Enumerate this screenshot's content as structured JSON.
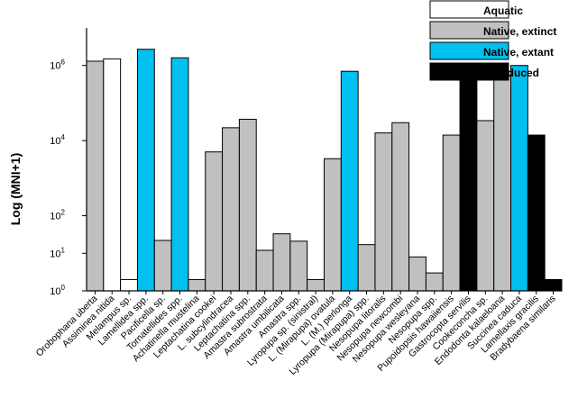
{
  "chart_data": {
    "type": "bar",
    "title": "",
    "xlabel": "",
    "ylabel": "Log (MNI+1)",
    "y_scale": "log",
    "ylim": [
      1,
      10000000
    ],
    "grid": false,
    "legend_position": "top-right",
    "y_ticks": [
      {
        "value": 1,
        "base": "10",
        "exp": "0"
      },
      {
        "value": 10,
        "base": "10",
        "exp": "1"
      },
      {
        "value": 100,
        "base": "10",
        "exp": "2"
      },
      {
        "value": 10000,
        "base": "10",
        "exp": "4"
      },
      {
        "value": 1000000,
        "base": "10",
        "exp": "6"
      }
    ],
    "legend": [
      {
        "key": "aquatic",
        "label": "Aquatic",
        "color": "#ffffff"
      },
      {
        "key": "native_extinct",
        "label": "Native, extinct",
        "color": "#c0c0c0"
      },
      {
        "key": "native_extant",
        "label": "Native, extant",
        "color": "#00c0f0"
      },
      {
        "key": "introduced",
        "label": "Introduced",
        "color": "#000000"
      }
    ],
    "categories": [
      "Orobophana uberta",
      "Assiminea nitida",
      "Melampus sp.",
      "Lamellidea spp.",
      "Pacificella sp.",
      "Tornatellides spp.",
      "Achatinella mustelina",
      "Leptachatina cookei",
      "L. subcylindracea",
      "Leptachatina spp.",
      "Amastra subrostrata",
      "Amastra umbilicata",
      "Amastra spp.",
      "Lyropupa sp. (sinistral)",
      "L. (Mirapupa) ovatula",
      "L. (M.) perlonga",
      "Lyropupa (Mirapupa) spp.",
      "Nesopupa litoralis",
      "Nesopupa newcombi",
      "Nesopupa wesleyana",
      "Nesopupa spp.",
      "Pupoidopsis hawaiiensis",
      "Gastrocopta servilis",
      "Cookeconcha sp.",
      "Endodonta kalaeloana",
      "Succinea caduca",
      "Lamellaxis gracilis",
      "Bradybaena similaris"
    ],
    "values": [
      1300000,
      1500000,
      2,
      2700000,
      22,
      1600000,
      2,
      5000,
      22000,
      37000,
      12,
      33,
      21,
      2,
      3300,
      700000,
      17,
      16000,
      30000,
      8,
      3,
      14000,
      550000,
      34000,
      550000,
      1000000,
      14000,
      2
    ],
    "groups": [
      "native_extinct",
      "aquatic",
      "aquatic",
      "native_extant",
      "native_extinct",
      "native_extant",
      "native_extinct",
      "native_extinct",
      "native_extinct",
      "native_extinct",
      "native_extinct",
      "native_extinct",
      "native_extinct",
      "native_extinct",
      "native_extinct",
      "native_extant",
      "native_extinct",
      "native_extinct",
      "native_extinct",
      "native_extinct",
      "native_extinct",
      "native_extinct",
      "introduced",
      "native_extinct",
      "native_extinct",
      "native_extant",
      "introduced",
      "introduced"
    ]
  }
}
